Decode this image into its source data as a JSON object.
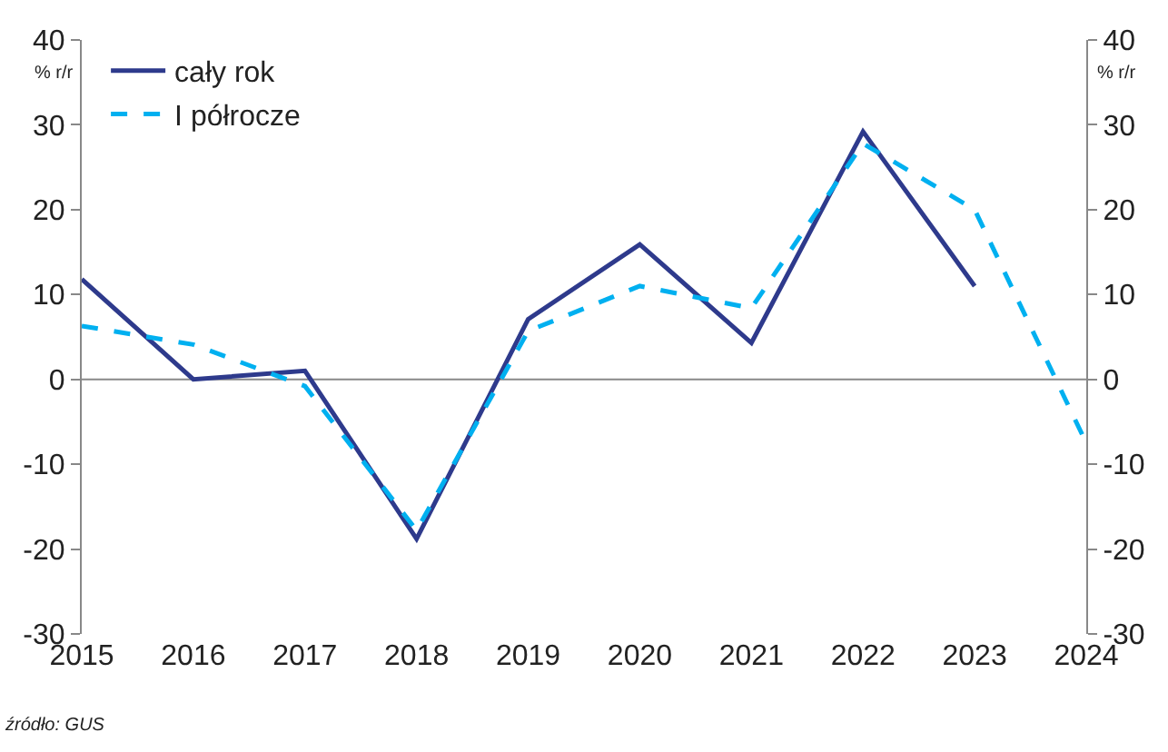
{
  "chart_data": {
    "type": "line",
    "x": [
      2015,
      2016,
      2017,
      2018,
      2019,
      2020,
      2021,
      2022,
      2023,
      2024
    ],
    "series": [
      {
        "name": "cały rok",
        "color": "#2e3a8c",
        "line_style": "solid",
        "values": [
          11.8,
          0,
          1,
          -18.8,
          7.1,
          15.9,
          4.3,
          29.2,
          11,
          null
        ]
      },
      {
        "name": "I półrocze",
        "color": "#00b0f0",
        "line_style": "dashed",
        "values": [
          6.3,
          4.1,
          -0.8,
          -17.8,
          5.7,
          11,
          8.4,
          27.8,
          20,
          -7.5
        ]
      }
    ],
    "xlim": [
      2015,
      2024
    ],
    "xticks": [
      2015,
      2016,
      2017,
      2018,
      2019,
      2020,
      2021,
      2022,
      2023,
      2024
    ],
    "ylim": [
      -30,
      40
    ],
    "yticks": [
      -30,
      -20,
      -10,
      0,
      10,
      20,
      30,
      40
    ],
    "y2lim": [
      -30,
      40
    ],
    "y2ticks": [
      -30,
      -20,
      -10,
      0,
      10,
      20,
      30,
      40
    ],
    "annotations": [
      "% r/r",
      "% r/r",
      "źródło: GUS"
    ],
    "ref_lines": [
      {
        "axis": "y",
        "value": 0,
        "color": "#888888"
      }
    ],
    "grid": false,
    "legend": "top left",
    "marker": "none"
  }
}
